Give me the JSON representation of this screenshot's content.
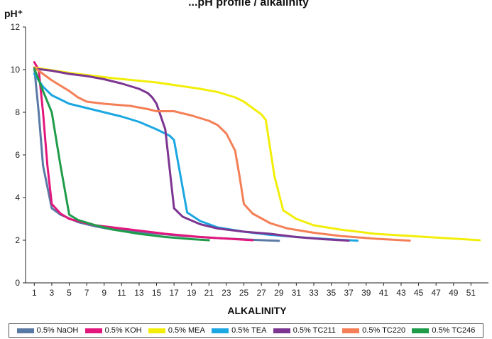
{
  "chart_data": {
    "type": "line",
    "title": "...pH profile / alkalinity",
    "ylabel": "pH⁺",
    "xlabel": "ALKALINITY",
    "xlim": [
      0,
      53
    ],
    "ylim": [
      0,
      12
    ],
    "x_ticks": [
      1,
      3,
      5,
      7,
      9,
      11,
      13,
      15,
      17,
      19,
      21,
      23,
      25,
      27,
      29,
      31,
      33,
      35,
      37,
      39,
      41,
      43,
      45,
      47,
      49,
      51
    ],
    "y_ticks": [
      0,
      2,
      4,
      6,
      8,
      10,
      12
    ],
    "grid": false,
    "legend_position": "bottom",
    "series": [
      {
        "name": "0.5% NaOH",
        "color": "#5a7aa6",
        "points": [
          [
            1,
            10.1
          ],
          [
            1.5,
            8
          ],
          [
            2,
            5.5
          ],
          [
            3,
            3.5
          ],
          [
            4,
            3.2
          ],
          [
            6,
            2.85
          ],
          [
            8,
            2.65
          ],
          [
            10,
            2.5
          ],
          [
            14,
            2.35
          ],
          [
            18,
            2.2
          ],
          [
            22,
            2.1
          ],
          [
            26,
            2.02
          ],
          [
            29,
            1.97
          ]
        ]
      },
      {
        "name": "0.5% KOH",
        "color": "#e2167c",
        "points": [
          [
            1,
            10.35
          ],
          [
            1.5,
            10
          ],
          [
            2,
            8
          ],
          [
            2.5,
            5.5
          ],
          [
            3,
            3.7
          ],
          [
            4,
            3.25
          ],
          [
            5,
            3.0
          ],
          [
            8,
            2.7
          ],
          [
            12,
            2.5
          ],
          [
            16,
            2.3
          ],
          [
            20,
            2.15
          ],
          [
            24,
            2.05
          ],
          [
            26,
            2.0
          ]
        ]
      },
      {
        "name": "0.5% MEA",
        "color": "#f2ee0a",
        "points": [
          [
            1,
            10.1
          ],
          [
            5,
            9.85
          ],
          [
            10,
            9.6
          ],
          [
            15,
            9.4
          ],
          [
            20,
            9.1
          ],
          [
            22,
            8.95
          ],
          [
            24,
            8.7
          ],
          [
            25,
            8.5
          ],
          [
            26,
            8.2
          ],
          [
            27,
            7.9
          ],
          [
            27.5,
            7.65
          ],
          [
            28.5,
            5
          ],
          [
            29.5,
            3.4
          ],
          [
            31,
            3.0
          ],
          [
            33,
            2.7
          ],
          [
            36,
            2.5
          ],
          [
            40,
            2.3
          ],
          [
            44,
            2.2
          ],
          [
            48,
            2.1
          ],
          [
            52,
            2.0
          ]
        ]
      },
      {
        "name": "0.5% TEA",
        "color": "#1ca7e2",
        "points": [
          [
            1,
            9.8
          ],
          [
            2,
            9.2
          ],
          [
            3,
            8.8
          ],
          [
            5,
            8.4
          ],
          [
            7,
            8.2
          ],
          [
            9,
            8.0
          ],
          [
            11,
            7.8
          ],
          [
            13,
            7.55
          ],
          [
            15,
            7.2
          ],
          [
            16.5,
            6.9
          ],
          [
            17,
            6.7
          ],
          [
            18.5,
            3.3
          ],
          [
            20,
            2.9
          ],
          [
            22,
            2.6
          ],
          [
            25,
            2.4
          ],
          [
            28,
            2.25
          ],
          [
            32,
            2.12
          ],
          [
            36,
            2.02
          ],
          [
            38,
            1.98
          ]
        ]
      },
      {
        "name": "0.5% TC211",
        "color": "#7c3591",
        "points": [
          [
            1,
            10.05
          ],
          [
            3,
            9.95
          ],
          [
            5,
            9.8
          ],
          [
            7,
            9.7
          ],
          [
            9,
            9.55
          ],
          [
            11,
            9.35
          ],
          [
            13,
            9.1
          ],
          [
            14,
            8.9
          ],
          [
            14.5,
            8.7
          ],
          [
            15,
            8.4
          ],
          [
            16,
            7.2
          ],
          [
            17,
            3.5
          ],
          [
            18,
            3.1
          ],
          [
            20,
            2.75
          ],
          [
            22,
            2.55
          ],
          [
            25,
            2.4
          ],
          [
            28,
            2.3
          ],
          [
            31,
            2.15
          ],
          [
            34,
            2.05
          ],
          [
            37,
            1.98
          ]
        ]
      },
      {
        "name": "0.5% TC220",
        "color": "#f47f56",
        "points": [
          [
            1,
            10.1
          ],
          [
            3,
            9.5
          ],
          [
            5,
            9.0
          ],
          [
            6,
            8.7
          ],
          [
            7,
            8.5
          ],
          [
            9,
            8.4
          ],
          [
            12,
            8.3
          ],
          [
            14,
            8.15
          ],
          [
            15,
            8.05
          ],
          [
            17,
            8.05
          ],
          [
            19,
            7.85
          ],
          [
            21,
            7.6
          ],
          [
            22,
            7.4
          ],
          [
            23,
            7.0
          ],
          [
            24,
            6.2
          ],
          [
            24.5,
            5.0
          ],
          [
            25,
            3.7
          ],
          [
            26,
            3.25
          ],
          [
            28,
            2.8
          ],
          [
            30,
            2.55
          ],
          [
            33,
            2.35
          ],
          [
            36,
            2.2
          ],
          [
            40,
            2.07
          ],
          [
            44,
            1.98
          ]
        ]
      },
      {
        "name": "0.5% TC246",
        "color": "#1f9c4a",
        "points": [
          [
            1,
            10.05
          ],
          [
            2,
            9.0
          ],
          [
            3,
            8.0
          ],
          [
            4,
            5.5
          ],
          [
            5,
            3.2
          ],
          [
            6,
            2.95
          ],
          [
            8,
            2.7
          ],
          [
            10,
            2.5
          ],
          [
            13,
            2.3
          ],
          [
            16,
            2.15
          ],
          [
            19,
            2.05
          ],
          [
            21,
            2.0
          ]
        ]
      }
    ]
  }
}
